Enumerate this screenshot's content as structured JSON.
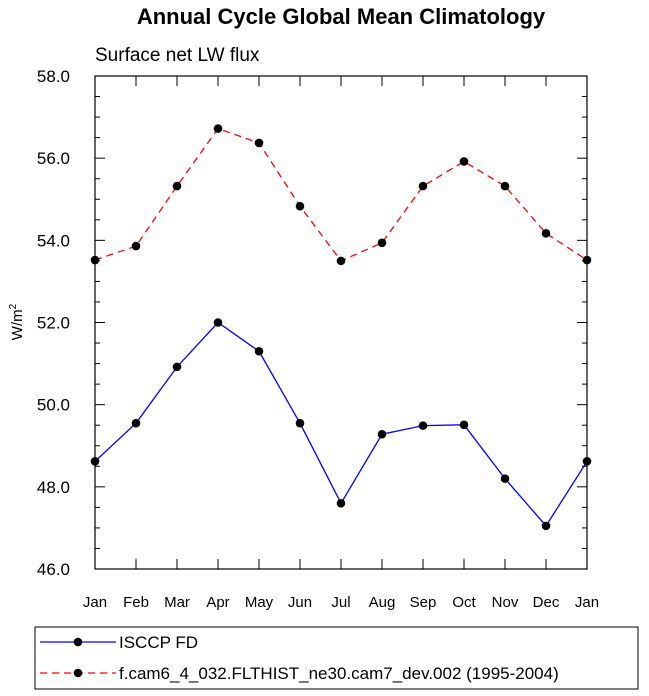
{
  "chart_data": {
    "type": "line",
    "title": "Annual Cycle Global Mean Climatology",
    "subtitle": "Surface net LW flux",
    "xlabel": "",
    "ylabel": "W/m",
    "ylabel_sup": "2",
    "categories": [
      "Jan",
      "Feb",
      "Mar",
      "Apr",
      "May",
      "Jun",
      "Jul",
      "Aug",
      "Sep",
      "Oct",
      "Nov",
      "Dec",
      "Jan"
    ],
    "ylim": [
      46.0,
      58.0
    ],
    "yticks": [
      "46.0",
      "48.0",
      "50.0",
      "52.0",
      "54.0",
      "56.0",
      "58.0"
    ],
    "grid": false,
    "legend_position": "bottom",
    "series": [
      {
        "name": "ISCCP FD",
        "color": "#0000ff",
        "dash": "solid",
        "values": [
          48.62,
          49.55,
          50.92,
          52.0,
          51.3,
          49.55,
          47.6,
          49.28,
          49.49,
          49.51,
          48.2,
          47.05,
          48.62
        ]
      },
      {
        "name": "f.cam6_4_032.FLTHIST_ne30.cam7_dev.002 (1995-2004)",
        "color": "#ff0000",
        "dash": "dashed",
        "values": [
          53.52,
          53.86,
          55.32,
          56.72,
          56.37,
          54.83,
          53.5,
          53.94,
          55.32,
          55.92,
          55.32,
          54.17,
          53.52
        ]
      }
    ]
  }
}
